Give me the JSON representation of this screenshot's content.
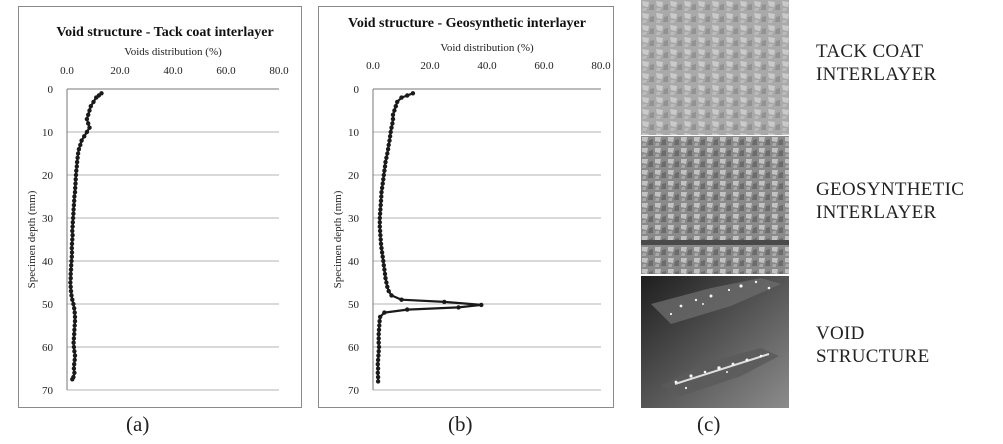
{
  "panel_labels": {
    "a": "(a)",
    "b": "(b)",
    "c": "(c)"
  },
  "captions": {
    "tack": "TACK COAT\nINTERLAYER",
    "geo": "GEOSYNTHETIC\nINTERLAYER",
    "void": "VOID\nSTRUCTURE"
  },
  "chart_data": [
    {
      "type": "line",
      "title": "Void structure - Tack coat interlayer",
      "xlabel": "Voids distribution (%)",
      "ylabel": "Specimen depth (mm)",
      "x_ticks": [
        "0.0",
        "20.0",
        "40.0",
        "60.0",
        "80.0"
      ],
      "y_ticks": [
        "0",
        "10",
        "20",
        "30",
        "40",
        "50",
        "60",
        "70"
      ],
      "xlim": [
        0,
        80
      ],
      "ylim": [
        0,
        70
      ],
      "x_axis_position": "top",
      "y_inverted": true,
      "grid": "horizontal",
      "series_color": "#1a1a1a",
      "series": [
        {
          "markers": true,
          "points": [
            [
              13,
              1
            ],
            [
              12,
              1.5
            ],
            [
              11,
              2
            ],
            [
              10,
              3
            ],
            [
              9,
              4
            ],
            [
              8.5,
              5
            ],
            [
              8,
              6
            ],
            [
              7.5,
              7
            ],
            [
              8,
              8
            ],
            [
              8.5,
              9
            ],
            [
              7.5,
              10
            ],
            [
              6.5,
              11
            ],
            [
              5.5,
              12
            ],
            [
              5,
              13
            ],
            [
              4.5,
              14
            ],
            [
              4.2,
              15
            ],
            [
              4,
              16
            ],
            [
              3.8,
              17
            ],
            [
              3.7,
              18
            ],
            [
              3.5,
              19
            ],
            [
              3.4,
              20
            ],
            [
              3.3,
              21
            ],
            [
              3.2,
              22
            ],
            [
              3.1,
              23
            ],
            [
              3,
              24
            ],
            [
              2.8,
              25
            ],
            [
              2.7,
              26
            ],
            [
              2.6,
              27
            ],
            [
              2.5,
              28
            ],
            [
              2.4,
              29
            ],
            [
              2.3,
              30
            ],
            [
              2.2,
              31
            ],
            [
              2.1,
              32
            ],
            [
              2,
              33
            ],
            [
              2.1,
              34
            ],
            [
              2,
              35
            ],
            [
              1.9,
              36
            ],
            [
              1.8,
              37
            ],
            [
              1.9,
              38
            ],
            [
              1.8,
              39
            ],
            [
              1.7,
              40
            ],
            [
              1.6,
              41
            ],
            [
              1.5,
              42
            ],
            [
              1.4,
              43
            ],
            [
              1.4,
              44
            ],
            [
              1.3,
              45
            ],
            [
              1.4,
              46
            ],
            [
              1.5,
              47
            ],
            [
              1.7,
              48
            ],
            [
              2,
              49
            ],
            [
              2.4,
              50
            ],
            [
              2.7,
              51
            ],
            [
              2.9,
              52
            ],
            [
              3,
              53
            ],
            [
              3,
              54
            ],
            [
              2.9,
              55
            ],
            [
              2.8,
              56
            ],
            [
              2.7,
              57
            ],
            [
              2.6,
              58
            ],
            [
              2.5,
              59
            ],
            [
              2.6,
              60
            ],
            [
              2.8,
              61
            ],
            [
              3,
              62
            ],
            [
              2.9,
              63
            ],
            [
              2.7,
              64
            ],
            [
              2.6,
              65
            ],
            [
              2.8,
              66
            ],
            [
              2.4,
              67
            ],
            [
              2,
              67.5
            ]
          ]
        }
      ]
    },
    {
      "type": "line",
      "title": "Void structure - Geosynthetic interlayer",
      "xlabel": "Void distribution (%)",
      "ylabel": "Specimen depth (mm)",
      "x_ticks": [
        "0.0",
        "20.0",
        "40.0",
        "60.0",
        "80.0"
      ],
      "y_ticks": [
        "0",
        "10",
        "20",
        "30",
        "40",
        "50",
        "60",
        "70"
      ],
      "xlim": [
        0,
        80
      ],
      "ylim": [
        0,
        70
      ],
      "x_axis_position": "top",
      "y_inverted": true,
      "grid": "horizontal",
      "series_color": "#1a1a1a",
      "series": [
        {
          "markers": true,
          "points": [
            [
              14,
              1
            ],
            [
              12,
              1.5
            ],
            [
              10,
              2
            ],
            [
              8.5,
              3
            ],
            [
              8,
              4
            ],
            [
              7.5,
              5
            ],
            [
              7,
              6
            ],
            [
              7,
              7
            ],
            [
              6.8,
              8
            ],
            [
              6.5,
              9
            ],
            [
              6.2,
              10
            ],
            [
              6,
              11
            ],
            [
              5.8,
              12
            ],
            [
              5.5,
              13
            ],
            [
              5.3,
              14
            ],
            [
              5,
              15
            ],
            [
              4.7,
              16
            ],
            [
              4.4,
              17
            ],
            [
              4.2,
              18
            ],
            [
              4,
              19
            ],
            [
              3.8,
              20
            ],
            [
              3.6,
              21
            ],
            [
              3.4,
              22
            ],
            [
              3.2,
              23
            ],
            [
              3,
              24
            ],
            [
              2.9,
              25
            ],
            [
              2.8,
              26
            ],
            [
              2.7,
              27
            ],
            [
              2.6,
              28
            ],
            [
              2.5,
              29
            ],
            [
              2.4,
              30
            ],
            [
              2.4,
              31
            ],
            [
              2.4,
              32
            ],
            [
              2.5,
              33
            ],
            [
              2.6,
              34
            ],
            [
              2.7,
              35
            ],
            [
              2.8,
              36
            ],
            [
              3,
              37
            ],
            [
              3.2,
              38
            ],
            [
              3.4,
              39
            ],
            [
              3.6,
              40
            ],
            [
              3.8,
              41
            ],
            [
              4,
              42
            ],
            [
              4.2,
              43
            ],
            [
              4.4,
              44
            ],
            [
              4.7,
              45
            ],
            [
              5,
              46
            ],
            [
              5.5,
              47
            ],
            [
              6.5,
              48
            ],
            [
              10,
              49
            ],
            [
              25,
              49.5
            ],
            [
              38,
              50.2
            ],
            [
              30,
              50.8
            ],
            [
              12,
              51.3
            ],
            [
              4,
              52
            ],
            [
              2.5,
              53
            ],
            [
              2.3,
              54
            ],
            [
              2.2,
              55
            ],
            [
              2.1,
              56
            ],
            [
              2,
              57
            ],
            [
              2,
              58
            ],
            [
              2,
              59
            ],
            [
              2.1,
              60
            ],
            [
              2,
              61
            ],
            [
              1.9,
              62
            ],
            [
              1.8,
              63
            ],
            [
              1.7,
              64
            ],
            [
              1.8,
              65
            ],
            [
              1.7,
              66
            ],
            [
              1.8,
              67
            ],
            [
              1.8,
              68
            ]
          ]
        }
      ]
    }
  ]
}
